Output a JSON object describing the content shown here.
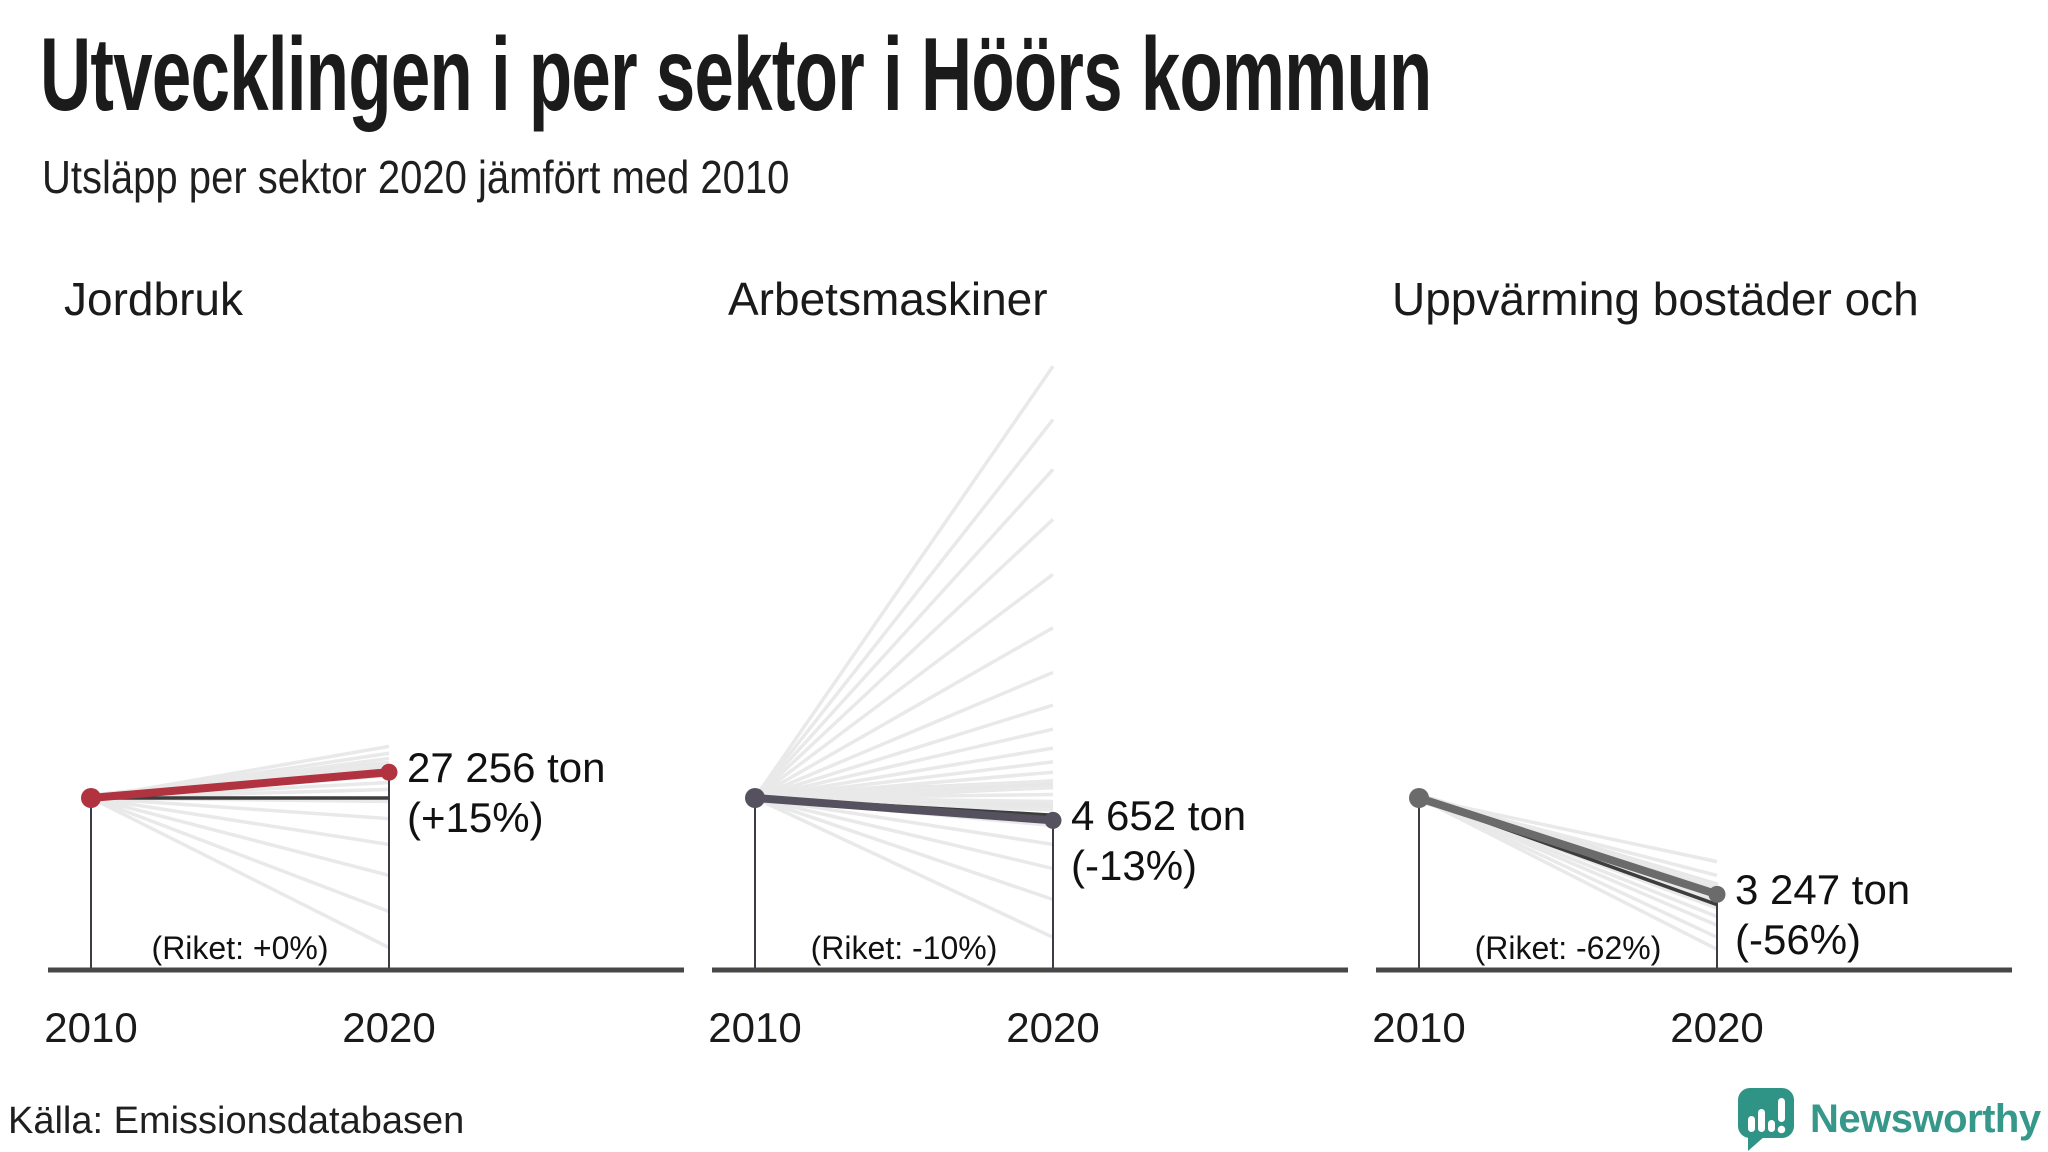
{
  "header": {
    "title": "Utvecklingen i per sektor i Höörs kommun",
    "subtitle": "Utsläpp per sektor 2020 jämfört med 2010"
  },
  "footer": {
    "source": "Källa: Emissionsdatabasen",
    "brand": "Newsworthy"
  },
  "colors": {
    "accent_red": "#b0333f",
    "accent_slate": "#55515f",
    "accent_gray": "#6b6b6b",
    "riket_line": "#3d3d3d",
    "axis": "#474747",
    "tick": "#3c3c46",
    "context": "#e9e9e9",
    "context_band": "#e7e7e7",
    "brand_teal": "#2f9386",
    "text": "#1a1a1a"
  },
  "chart_data": [
    {
      "type": "line",
      "title": "Jordbruk",
      "x": [
        "2010",
        "2020"
      ],
      "series": [
        {
          "name": "Höörs kommun",
          "pct_change": 15,
          "value_2020_label": "27 256 ton",
          "value_2020_ton": 27256,
          "pct_label": "(+15%)",
          "color_key": "accent_red"
        },
        {
          "name": "Riket",
          "pct_change": 0,
          "label": "(Riket: +0%)",
          "color_key": "riket_line"
        }
      ],
      "context_pcts": [
        30,
        26,
        23,
        20,
        17,
        13,
        9,
        5,
        -2,
        -12,
        -27,
        -45,
        -66,
        -87
      ],
      "context_bands": [
        {
          "pct": 19,
          "w": 9
        }
      ]
    },
    {
      "type": "line",
      "title": "Arbetsmaskiner",
      "x": [
        "2010",
        "2020"
      ],
      "series": [
        {
          "name": "Höörs kommun",
          "pct_change": -13,
          "value_2020_label": "4 652 ton",
          "value_2020_ton": 4652,
          "pct_label": "(-13%)",
          "color_key": "accent_slate"
        },
        {
          "name": "Riket",
          "pct_change": -10,
          "label": "(Riket: -10%)",
          "color_key": "riket_line"
        }
      ],
      "context_pcts": [
        251,
        220,
        191,
        162,
        130,
        99,
        73,
        54,
        40,
        29,
        21,
        15,
        10,
        6,
        2,
        -2,
        -7,
        -16,
        -27,
        -41,
        -59,
        -81
      ],
      "context_bands": [
        {
          "pct": 8,
          "w": 10
        },
        {
          "pct": -5,
          "w": 10
        }
      ]
    },
    {
      "type": "line",
      "title": "Uppvärming bostäder och",
      "x": [
        "2010",
        "2020"
      ],
      "series": [
        {
          "name": "Höörs kommun",
          "pct_change": -56,
          "value_2020_label": "3 247 ton",
          "value_2020_ton": 3247,
          "pct_label": "(-56%)",
          "color_key": "accent_gray"
        },
        {
          "name": "Riket",
          "pct_change": -62,
          "label": "(Riket: -62%)",
          "color_key": "riket_line"
        }
      ],
      "context_pcts": [
        -37,
        -45,
        -51,
        -55,
        -59,
        -64,
        -69,
        -74,
        -81,
        -88
      ],
      "context_bands": [
        {
          "pct": -52,
          "w": 10
        },
        {
          "pct": -60,
          "w": 8
        }
      ]
    }
  ]
}
